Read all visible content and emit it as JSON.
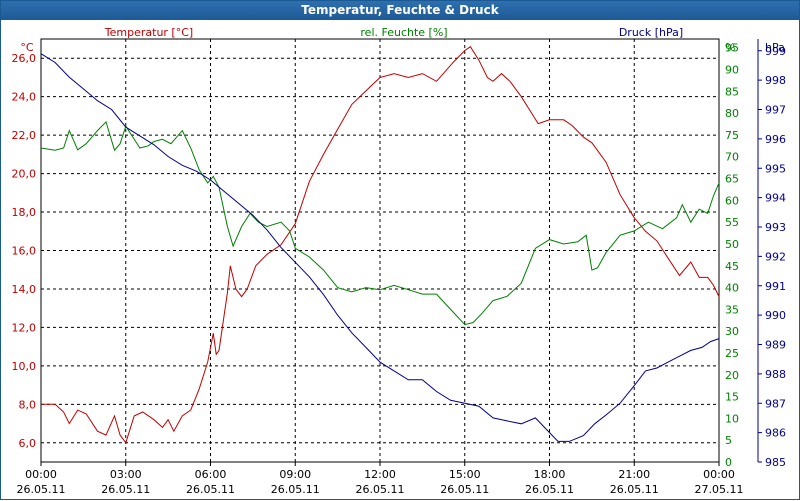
{
  "window": {
    "title": "Temperatur, Feuchte & Druck"
  },
  "colors": {
    "temperature": "#c00000",
    "humidity": "#008000",
    "pressure": "#00008b",
    "grid": "#000000",
    "frame": "#1a5a93"
  },
  "chart_data": {
    "type": "line",
    "title": "Temperatur, Feuchte & Druck",
    "grid": true,
    "x_ticks": [
      {
        "time": "00:00",
        "date": "26.05.11"
      },
      {
        "time": "03:00",
        "date": "26.05.11"
      },
      {
        "time": "06:00",
        "date": "26.05.11"
      },
      {
        "time": "09:00",
        "date": "26.05.11"
      },
      {
        "time": "12:00",
        "date": "26.05.11"
      },
      {
        "time": "15:00",
        "date": "26.05.11"
      },
      {
        "time": "18:00",
        "date": "26.05.11"
      },
      {
        "time": "21:00",
        "date": "26.05.11"
      },
      {
        "time": "00:00",
        "date": "27.05.11"
      }
    ],
    "x_hours_range": [
      0,
      24
    ],
    "axes": {
      "temperature": {
        "unit": "°C",
        "label": "Temperatur [°C]",
        "ylim": [
          5,
          27
        ],
        "ticks": [
          "6,0",
          "8,0",
          "10,0",
          "12,0",
          "14,0",
          "16,0",
          "18,0",
          "20,0",
          "22,0",
          "24,0",
          "26,0"
        ],
        "tick_values": [
          6,
          8,
          10,
          12,
          14,
          16,
          18,
          20,
          22,
          24,
          26
        ]
      },
      "humidity": {
        "unit": "%",
        "label": "rel. Feuchte [%]",
        "ylim": [
          0,
          97
        ],
        "ticks": [
          "0",
          "5",
          "10",
          "15",
          "20",
          "25",
          "30",
          "35",
          "40",
          "45",
          "50",
          "55",
          "60",
          "65",
          "70",
          "75",
          "80",
          "85",
          "90",
          "95"
        ],
        "tick_values": [
          0,
          5,
          10,
          15,
          20,
          25,
          30,
          35,
          40,
          45,
          50,
          55,
          60,
          65,
          70,
          75,
          80,
          85,
          90,
          95
        ]
      },
      "pressure": {
        "unit": "hPa",
        "label": "Druck [hPa]",
        "ylim": [
          985,
          999.4
        ],
        "ticks": [
          "985",
          "986",
          "987",
          "988",
          "989",
          "990",
          "991",
          "992",
          "993",
          "994",
          "995",
          "996",
          "997",
          "998",
          "999"
        ],
        "tick_values": [
          985,
          986,
          987,
          988,
          989,
          990,
          991,
          992,
          993,
          994,
          995,
          996,
          997,
          998,
          999
        ]
      }
    },
    "series": [
      {
        "name": "Temperatur [°C]",
        "axis": "temperature",
        "points": [
          [
            0,
            8.0
          ],
          [
            0.5,
            8.0
          ],
          [
            0.8,
            7.6
          ],
          [
            1.0,
            7.0
          ],
          [
            1.3,
            7.7
          ],
          [
            1.6,
            7.5
          ],
          [
            2.0,
            6.6
          ],
          [
            2.3,
            6.4
          ],
          [
            2.6,
            7.4
          ],
          [
            2.8,
            6.4
          ],
          [
            3.0,
            6.0
          ],
          [
            3.3,
            7.4
          ],
          [
            3.6,
            7.6
          ],
          [
            4.0,
            7.2
          ],
          [
            4.3,
            6.8
          ],
          [
            4.5,
            7.2
          ],
          [
            4.7,
            6.6
          ],
          [
            5.0,
            7.4
          ],
          [
            5.3,
            7.7
          ],
          [
            5.6,
            8.8
          ],
          [
            5.9,
            10.2
          ],
          [
            6.1,
            11.7
          ],
          [
            6.2,
            10.6
          ],
          [
            6.3,
            10.8
          ],
          [
            6.6,
            13.8
          ],
          [
            6.7,
            15.2
          ],
          [
            6.9,
            14.0
          ],
          [
            7.1,
            13.6
          ],
          [
            7.3,
            14.0
          ],
          [
            7.6,
            15.2
          ],
          [
            8.0,
            15.8
          ],
          [
            8.5,
            16.3
          ],
          [
            9.0,
            17.4
          ],
          [
            9.5,
            19.6
          ],
          [
            10.0,
            21.0
          ],
          [
            10.5,
            22.3
          ],
          [
            11.0,
            23.6
          ],
          [
            11.5,
            24.3
          ],
          [
            12.0,
            25.0
          ],
          [
            12.5,
            25.2
          ],
          [
            13.0,
            25.0
          ],
          [
            13.5,
            25.2
          ],
          [
            14.0,
            24.8
          ],
          [
            14.3,
            25.3
          ],
          [
            14.6,
            25.8
          ],
          [
            15.0,
            26.4
          ],
          [
            15.2,
            26.6
          ],
          [
            15.5,
            25.9
          ],
          [
            15.8,
            25.0
          ],
          [
            16.0,
            24.8
          ],
          [
            16.3,
            25.2
          ],
          [
            16.6,
            24.8
          ],
          [
            17.0,
            24.0
          ],
          [
            17.3,
            23.3
          ],
          [
            17.6,
            22.6
          ],
          [
            18.0,
            22.8
          ],
          [
            18.5,
            22.8
          ],
          [
            18.8,
            22.5
          ],
          [
            19.2,
            21.9
          ],
          [
            19.5,
            21.6
          ],
          [
            20.0,
            20.6
          ],
          [
            20.5,
            18.9
          ],
          [
            21.0,
            17.7
          ],
          [
            21.4,
            17.0
          ],
          [
            21.8,
            16.5
          ],
          [
            22.2,
            15.6
          ],
          [
            22.6,
            14.7
          ],
          [
            23.0,
            15.4
          ],
          [
            23.3,
            14.6
          ],
          [
            23.6,
            14.6
          ],
          [
            23.8,
            14.2
          ],
          [
            24.0,
            13.6
          ]
        ]
      },
      {
        "name": "rel. Feuchte [%]",
        "axis": "humidity",
        "points": [
          [
            0,
            72
          ],
          [
            0.5,
            71.5
          ],
          [
            0.8,
            72
          ],
          [
            1.0,
            76
          ],
          [
            1.3,
            71.6
          ],
          [
            1.6,
            73
          ],
          [
            2.0,
            76
          ],
          [
            2.3,
            78
          ],
          [
            2.6,
            71.5
          ],
          [
            2.8,
            73
          ],
          [
            3.0,
            77
          ],
          [
            3.2,
            75
          ],
          [
            3.5,
            72
          ],
          [
            3.8,
            72.5
          ],
          [
            4.0,
            73.5
          ],
          [
            4.3,
            74
          ],
          [
            4.6,
            73
          ],
          [
            5.0,
            76
          ],
          [
            5.3,
            72
          ],
          [
            5.6,
            67
          ],
          [
            5.9,
            64
          ],
          [
            6.1,
            65.5
          ],
          [
            6.3,
            63
          ],
          [
            6.6,
            54
          ],
          [
            6.8,
            49.5
          ],
          [
            7.1,
            54
          ],
          [
            7.4,
            57
          ],
          [
            7.7,
            55
          ],
          [
            8.0,
            54
          ],
          [
            8.5,
            55
          ],
          [
            8.8,
            53
          ],
          [
            9.0,
            49
          ],
          [
            9.5,
            47
          ],
          [
            10.0,
            44
          ],
          [
            10.5,
            40
          ],
          [
            11.0,
            39
          ],
          [
            11.5,
            40
          ],
          [
            12.0,
            39.5
          ],
          [
            12.5,
            40.5
          ],
          [
            13.0,
            39.5
          ],
          [
            13.5,
            38.5
          ],
          [
            14.0,
            38.5
          ],
          [
            14.5,
            35
          ],
          [
            15.0,
            31.5
          ],
          [
            15.3,
            32
          ],
          [
            15.6,
            34
          ],
          [
            16.0,
            37
          ],
          [
            16.5,
            38
          ],
          [
            17.0,
            41
          ],
          [
            17.5,
            49
          ],
          [
            18.0,
            51
          ],
          [
            18.5,
            50
          ],
          [
            19.0,
            50.5
          ],
          [
            19.3,
            52
          ],
          [
            19.5,
            44
          ],
          [
            19.7,
            44.5
          ],
          [
            20.0,
            48
          ],
          [
            20.5,
            52
          ],
          [
            21.0,
            53
          ],
          [
            21.5,
            55
          ],
          [
            22.0,
            53.5
          ],
          [
            22.5,
            56
          ],
          [
            22.7,
            59
          ],
          [
            23.0,
            55
          ],
          [
            23.3,
            58
          ],
          [
            23.6,
            57
          ],
          [
            23.8,
            61
          ],
          [
            24.0,
            64
          ]
        ]
      },
      {
        "name": "Druck [hPa]",
        "axis": "pressure",
        "points": [
          [
            0,
            998.9
          ],
          [
            0.5,
            998.6
          ],
          [
            1.0,
            998.1
          ],
          [
            1.5,
            997.7
          ],
          [
            2.0,
            997.3
          ],
          [
            2.5,
            997.0
          ],
          [
            3.0,
            996.4
          ],
          [
            3.5,
            996.1
          ],
          [
            4.0,
            995.8
          ],
          [
            4.5,
            995.4
          ],
          [
            5.0,
            995.1
          ],
          [
            5.5,
            994.9
          ],
          [
            6.0,
            994.6
          ],
          [
            6.5,
            994.2
          ],
          [
            7.0,
            993.8
          ],
          [
            7.5,
            993.4
          ],
          [
            8.0,
            992.9
          ],
          [
            8.5,
            992.3
          ],
          [
            9.0,
            991.8
          ],
          [
            9.5,
            991.3
          ],
          [
            10.0,
            990.7
          ],
          [
            10.5,
            990.0
          ],
          [
            11.0,
            989.4
          ],
          [
            11.5,
            988.9
          ],
          [
            12.0,
            988.4
          ],
          [
            12.5,
            988.1
          ],
          [
            13.0,
            987.8
          ],
          [
            13.5,
            987.8
          ],
          [
            14.0,
            987.4
          ],
          [
            14.5,
            987.1
          ],
          [
            15.0,
            987.0
          ],
          [
            15.5,
            986.9
          ],
          [
            16.0,
            986.5
          ],
          [
            16.5,
            986.4
          ],
          [
            17.0,
            986.3
          ],
          [
            17.5,
            986.5
          ],
          [
            18.0,
            986.0
          ],
          [
            18.3,
            985.7
          ],
          [
            18.7,
            985.7
          ],
          [
            19.2,
            985.9
          ],
          [
            19.6,
            986.3
          ],
          [
            20.0,
            986.6
          ],
          [
            20.5,
            987.0
          ],
          [
            21.0,
            987.6
          ],
          [
            21.4,
            988.1
          ],
          [
            21.8,
            988.2
          ],
          [
            22.2,
            988.4
          ],
          [
            22.6,
            988.6
          ],
          [
            23.0,
            988.8
          ],
          [
            23.4,
            988.9
          ],
          [
            23.7,
            989.1
          ],
          [
            24.0,
            989.2
          ]
        ]
      }
    ]
  }
}
